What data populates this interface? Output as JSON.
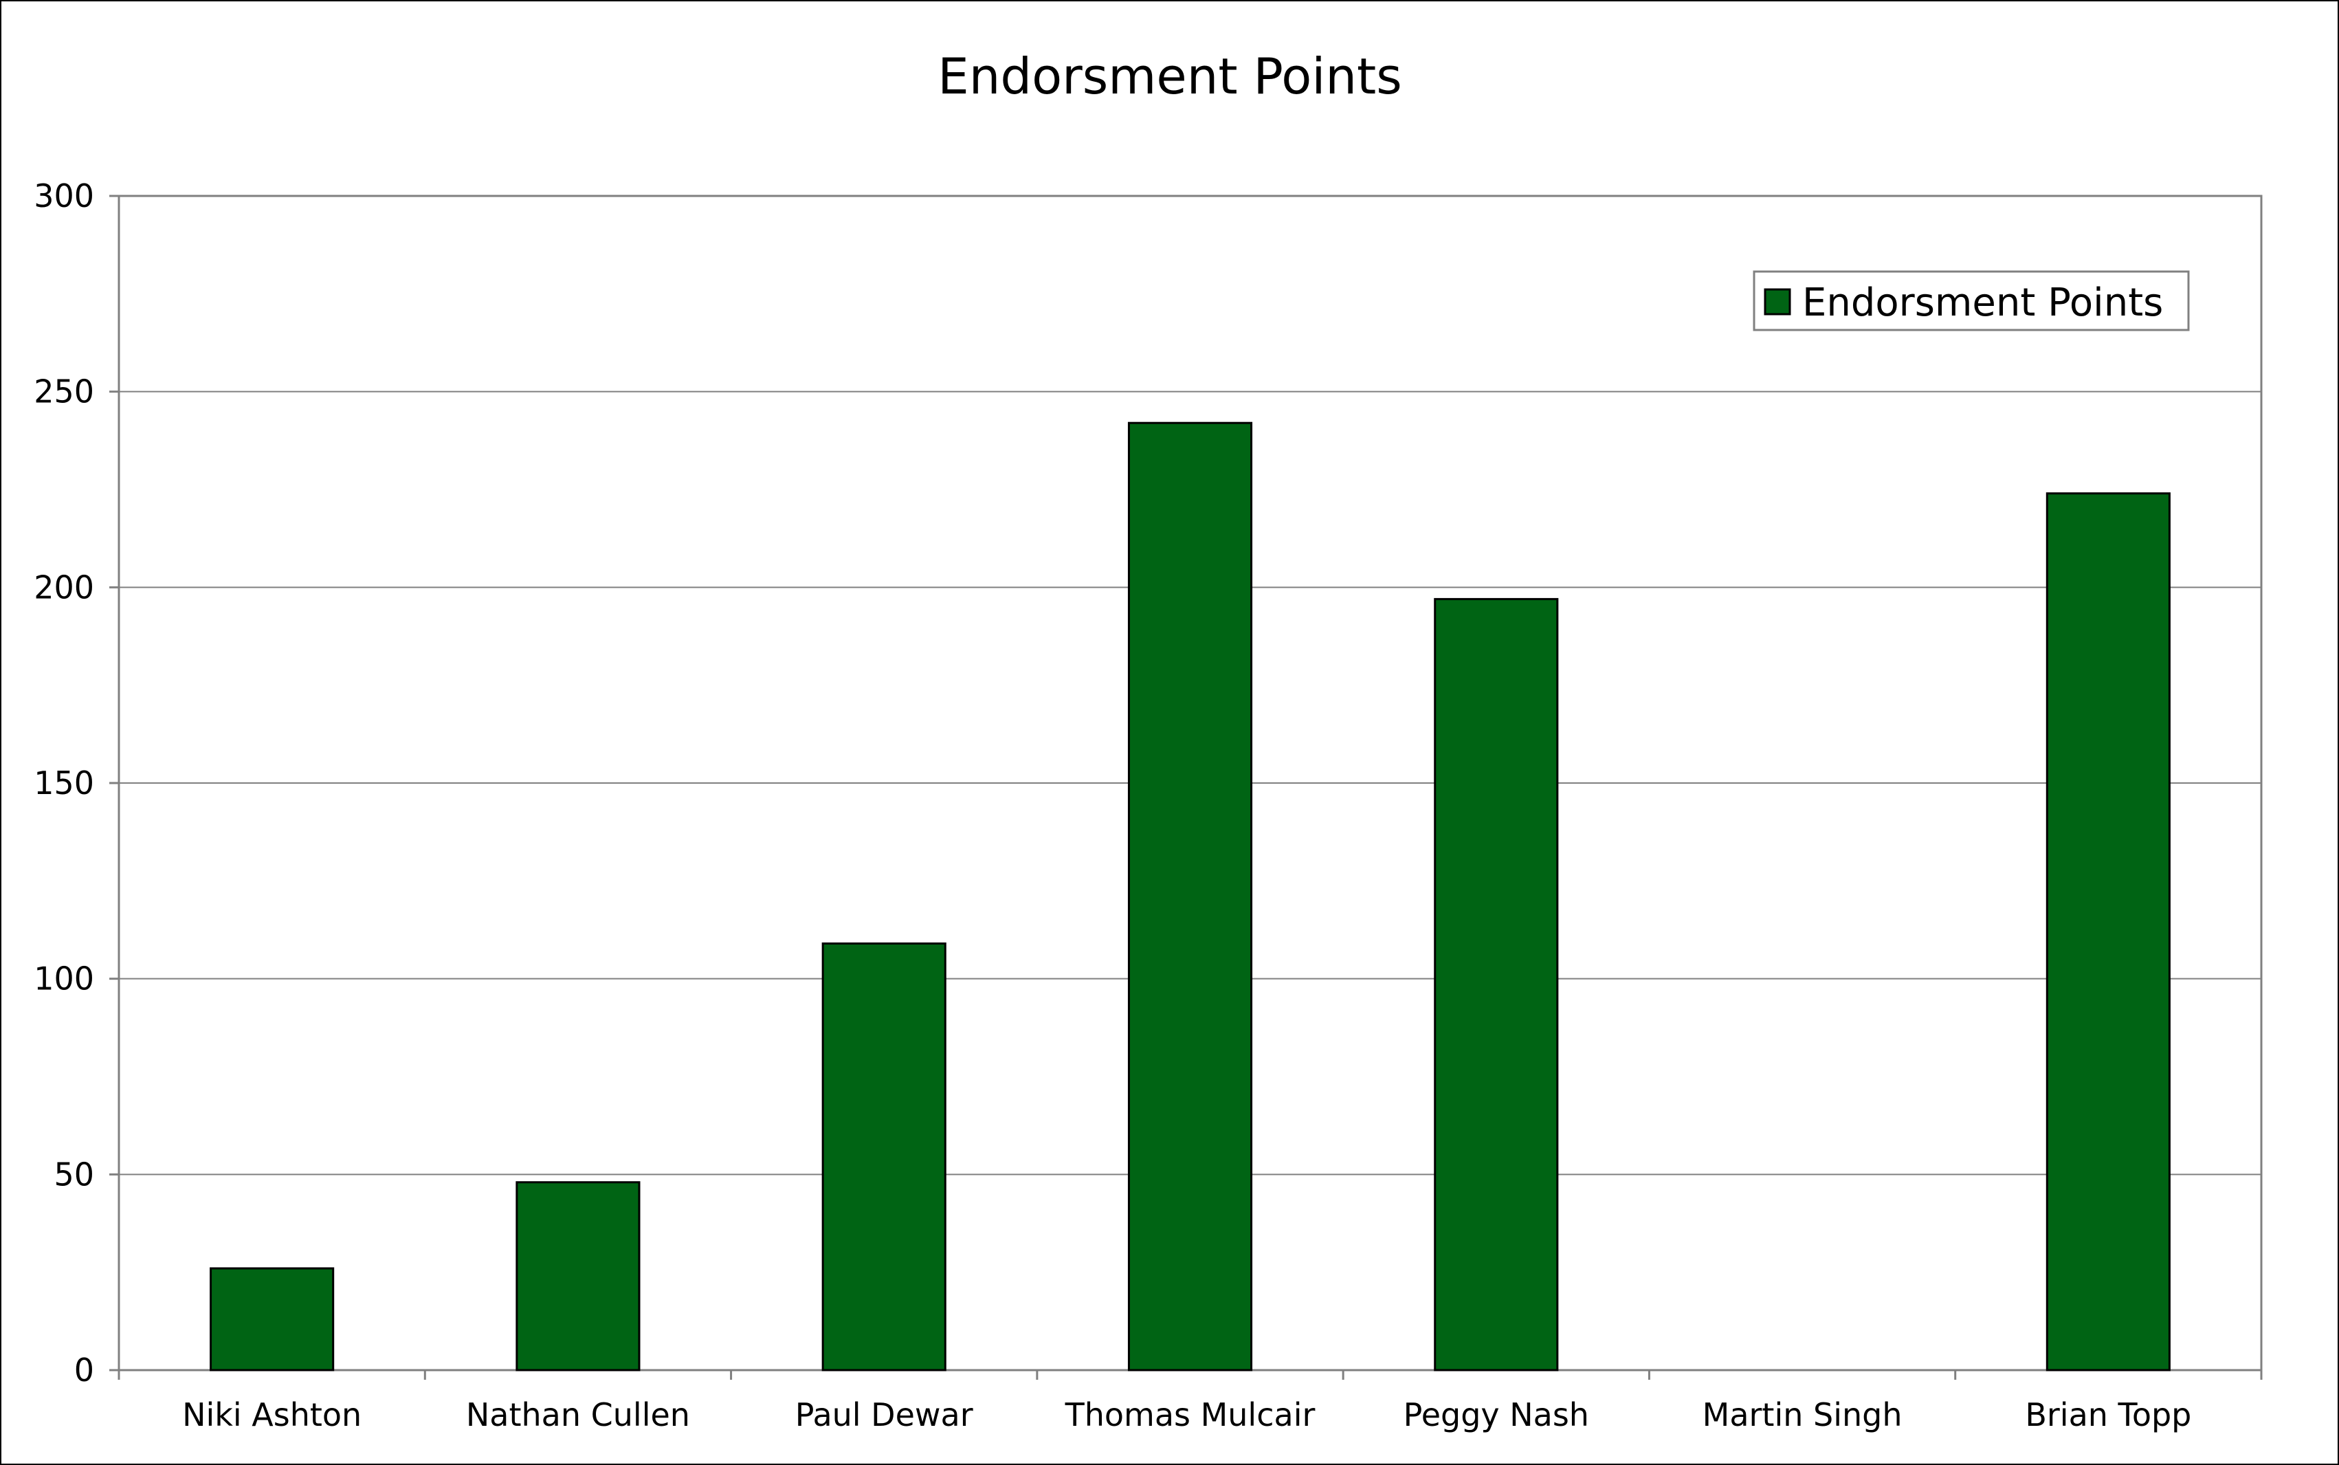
{
  "chart_data": {
    "type": "bar",
    "title": "Endorsment Points",
    "xlabel": "",
    "ylabel": "",
    "categories": [
      "Niki Ashton",
      "Nathan Cullen",
      "Paul Dewar",
      "Thomas Mulcair",
      "Peggy Nash",
      "Martin Singh",
      "Brian Topp"
    ],
    "series": [
      {
        "name": "Endorsment Points",
        "values": [
          26,
          48,
          109,
          242,
          197,
          0,
          224
        ],
        "color": "#006414"
      }
    ],
    "ylim": [
      0,
      300
    ],
    "yticks": [
      "0",
      "50",
      "100",
      "150",
      "200",
      "250",
      "300"
    ],
    "grid": true,
    "legend_position": "top-right"
  }
}
